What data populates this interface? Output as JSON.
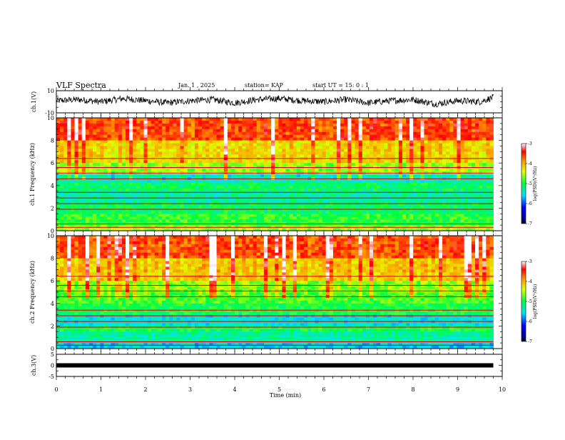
{
  "header": {
    "title": "VLF Spectra",
    "date": "Jan. 1 , 2025",
    "station": "station= KAP",
    "start": "start UT =  15: 0 : 1"
  },
  "chart_data": [
    {
      "type": "line",
      "panel": "ch1-waveform",
      "ylabel": "ch.1(V)",
      "ylim": [
        -10,
        10
      ],
      "yticks": [
        "10",
        "-10"
      ],
      "xlim": [
        0,
        10
      ],
      "xlabel": "",
      "series": [
        {
          "x": [
            0,
            0.5,
            1,
            1.5,
            2,
            2.5,
            3,
            3.5,
            4,
            4.5,
            5,
            5.5,
            6,
            6.5,
            7,
            7.5,
            8,
            8.5,
            9,
            9.5,
            9.8
          ],
          "values": [
            1,
            2,
            0,
            3,
            1,
            -1,
            1,
            2,
            -1,
            2,
            3,
            1,
            0,
            2,
            -1,
            1,
            2,
            -2,
            1,
            0,
            4
          ]
        }
      ]
    },
    {
      "type": "heatmap",
      "panel": "ch1-spectrogram",
      "ylabel": "ch.1 Frequency  (kHz)",
      "xlim": [
        0,
        10
      ],
      "ylim": [
        0,
        10
      ],
      "yticks": [
        "0",
        "2",
        "4",
        "6",
        "8",
        "10"
      ],
      "data_extent_min": 9.8,
      "colorbar": {
        "label": "log(PSD)(V²/Hz)",
        "ticks": [
          "-3",
          "-4",
          "-5",
          "-6",
          "-7"
        ],
        "range": [
          -7,
          -3
        ]
      },
      "bands": [
        {
          "from": 0,
          "to": 0.5,
          "level": -4.6
        },
        {
          "from": 0.5,
          "to": 1.5,
          "level": -4.9
        },
        {
          "from": 1.5,
          "to": 2.5,
          "level": -5.1
        },
        {
          "from": 2.5,
          "to": 3.5,
          "level": -5.3
        },
        {
          "from": 3.5,
          "to": 4.2,
          "level": -5.1
        },
        {
          "from": 4.2,
          "to": 5.0,
          "level": -5.4
        },
        {
          "from": 5.0,
          "to": 6.0,
          "level": -4.6
        },
        {
          "from": 6.0,
          "to": 8.0,
          "level": -4.2
        },
        {
          "from": 8.0,
          "to": 10.0,
          "level": -3.6
        }
      ]
    },
    {
      "type": "heatmap",
      "panel": "ch2-spectrogram",
      "ylabel": "ch.2 Frequency  (kHz)",
      "xlim": [
        0,
        10
      ],
      "ylim": [
        0,
        10
      ],
      "yticks": [
        "0",
        "2",
        "4",
        "6",
        "8",
        "10"
      ],
      "data_extent_min": 9.8,
      "colorbar": {
        "label": "log(PSD)(V²/Hz)",
        "ticks": [
          "-3",
          "-4",
          "-5",
          "-6",
          "-7"
        ],
        "range": [
          -7,
          -3
        ]
      },
      "bands": [
        {
          "from": 0,
          "to": 0.5,
          "level": -5.6
        },
        {
          "from": 0.5,
          "to": 1.5,
          "level": -5.3
        },
        {
          "from": 1.5,
          "to": 2.0,
          "level": -5.0
        },
        {
          "from": 2.0,
          "to": 3.0,
          "level": -5.5
        },
        {
          "from": 3.0,
          "to": 4.0,
          "level": -5.0
        },
        {
          "from": 4.0,
          "to": 5.0,
          "level": -4.8
        },
        {
          "from": 5.0,
          "to": 6.0,
          "level": -4.6
        },
        {
          "from": 6.0,
          "to": 8.0,
          "level": -4.1
        },
        {
          "from": 8.0,
          "to": 10.0,
          "level": -3.6
        }
      ]
    },
    {
      "type": "line",
      "panel": "ch3-waveform",
      "ylabel": "ch.3(V)",
      "ylim": [
        -5,
        5
      ],
      "yticks": [
        "5",
        "0",
        "-5"
      ],
      "xlim": [
        0,
        10
      ],
      "xticks": [
        "0",
        "1",
        "2",
        "3",
        "4",
        "5",
        "6",
        "7",
        "8",
        "9",
        "10"
      ],
      "xlabel": "Time (min)",
      "series": [
        {
          "x": [
            0,
            9.8
          ],
          "values": [
            0,
            0
          ]
        }
      ]
    }
  ]
}
